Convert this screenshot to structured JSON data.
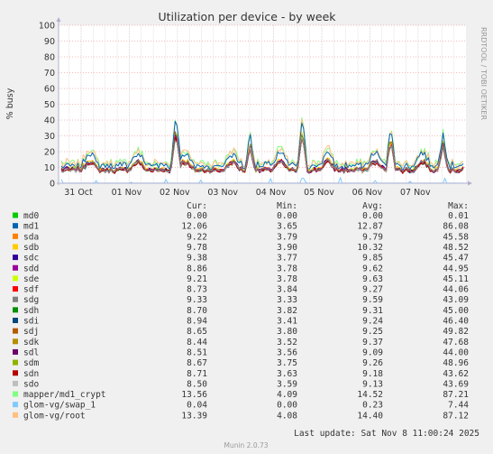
{
  "chart_data": {
    "type": "area",
    "title": "Utilization per device - by week",
    "ylabel": "% busy",
    "ylim": [
      0,
      100
    ],
    "yticks": [
      0,
      10,
      20,
      30,
      40,
      50,
      60,
      70,
      80,
      90,
      100
    ],
    "xtick_labels": [
      "31 Oct",
      "01 Nov",
      "02 Nov",
      "03 Nov",
      "04 Nov",
      "05 Nov",
      "06 Nov",
      "07 Nov"
    ],
    "side_label": "RRDTOOL / TOBI OETIKER",
    "grid": true,
    "legend_headers": {
      "cur": "Cur:",
      "min": "Min:",
      "avg": "Avg:",
      "max": "Max:"
    },
    "series": [
      {
        "name": "md0",
        "color": "#00cc00",
        "cur": "0.00",
        "min": "0.00",
        "avg": "0.00",
        "max": "0.01"
      },
      {
        "name": "md1",
        "color": "#0066b3",
        "cur": "12.06",
        "min": "3.65",
        "avg": "12.87",
        "max": "86.08"
      },
      {
        "name": "sda",
        "color": "#ff8000",
        "cur": "9.22",
        "min": "3.79",
        "avg": "9.79",
        "max": "45.58"
      },
      {
        "name": "sdb",
        "color": "#ffcc00",
        "cur": "9.78",
        "min": "3.90",
        "avg": "10.32",
        "max": "48.52"
      },
      {
        "name": "sdc",
        "color": "#330099",
        "cur": "9.38",
        "min": "3.77",
        "avg": "9.85",
        "max": "45.47"
      },
      {
        "name": "sdd",
        "color": "#990099",
        "cur": "8.86",
        "min": "3.78",
        "avg": "9.62",
        "max": "44.95"
      },
      {
        "name": "sde",
        "color": "#ccff00",
        "cur": "9.21",
        "min": "3.78",
        "avg": "9.63",
        "max": "45.11"
      },
      {
        "name": "sdf",
        "color": "#ff0000",
        "cur": "8.73",
        "min": "3.84",
        "avg": "9.27",
        "max": "44.06"
      },
      {
        "name": "sdg",
        "color": "#808080",
        "cur": "9.33",
        "min": "3.33",
        "avg": "9.59",
        "max": "43.09"
      },
      {
        "name": "sdh",
        "color": "#008f00",
        "cur": "8.70",
        "min": "3.82",
        "avg": "9.31",
        "max": "45.00"
      },
      {
        "name": "sdi",
        "color": "#00487d",
        "cur": "8.94",
        "min": "3.41",
        "avg": "9.24",
        "max": "46.40"
      },
      {
        "name": "sdj",
        "color": "#b35a00",
        "cur": "8.65",
        "min": "3.80",
        "avg": "9.25",
        "max": "49.82"
      },
      {
        "name": "sdk",
        "color": "#b38f00",
        "cur": "8.44",
        "min": "3.52",
        "avg": "9.37",
        "max": "47.68"
      },
      {
        "name": "sdl",
        "color": "#6b006b",
        "cur": "8.51",
        "min": "3.56",
        "avg": "9.09",
        "max": "44.00"
      },
      {
        "name": "sdm",
        "color": "#8fb300",
        "cur": "8.67",
        "min": "3.75",
        "avg": "9.26",
        "max": "48.96"
      },
      {
        "name": "sdn",
        "color": "#b30000",
        "cur": "8.71",
        "min": "3.63",
        "avg": "9.18",
        "max": "43.62"
      },
      {
        "name": "sdo",
        "color": "#bebebe",
        "cur": "8.50",
        "min": "3.59",
        "avg": "9.13",
        "max": "43.69"
      },
      {
        "name": "mapper/md1_crypt",
        "color": "#80ff80",
        "cur": "13.56",
        "min": "4.09",
        "avg": "14.52",
        "max": "87.21"
      },
      {
        "name": "glom-vg/swap_1",
        "color": "#80c9ff",
        "cur": "0.04",
        "min": "0.00",
        "avg": "0.23",
        "max": "7.44"
      },
      {
        "name": "glom-vg/root",
        "color": "#ffc080",
        "cur": "13.39",
        "min": "4.08",
        "avg": "14.40",
        "max": "87.12"
      }
    ],
    "last_update": "Last update: Sat Nov  8 11:00:24 2025",
    "footer": "Munin 2.0.73"
  }
}
